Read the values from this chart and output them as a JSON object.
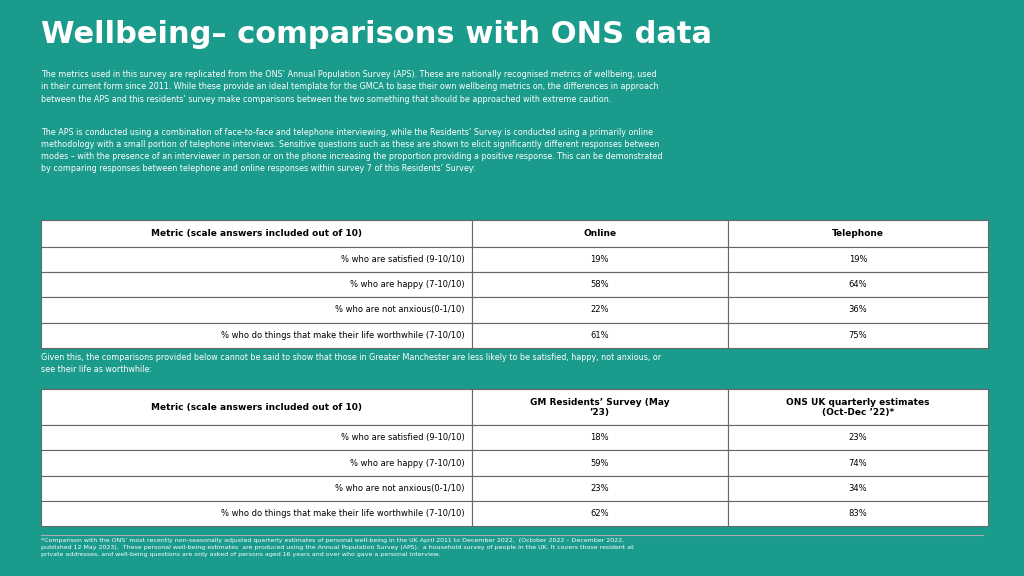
{
  "title": "Wellbeing– comparisons with ONS data",
  "bg_color": "#1a9b8c",
  "text_color": "#ffffff",
  "table_bg": "#ffffff",
  "table_text": "#000000",
  "para1": "The metrics used in this survey are replicated from the ONS’ Annual Population Survey (APS). These are nationally recognised metrics of wellbeing, used\nin their current form since 2011. While these provide an ideal template for the GMCA to base their own wellbeing metrics on, the differences in approach\nbetween the APS and this residents’ survey make comparisons between the two something that should be approached with extreme caution.",
  "para2": "The APS is conducted using a combination of face-to-face and telephone interviewing, while the Residents’ Survey is conducted using a primarily online\nmethodology with a small portion of telephone interviews. Sensitive questions such as these are shown to elicit significantly different responses between\nmodes – with the presence of an interviewer in person or on the phone increasing the proportion providing a positive response. This can be demonstrated\nby comparing responses between telephone and online responses within survey 7 of this Residents’ Survey:",
  "table1_headers": [
    "Metric (scale answers included out of 10)",
    "Online",
    "Telephone"
  ],
  "table1_rows": [
    [
      "% who are satisfied (9-10/10)",
      "19%",
      "19%"
    ],
    [
      "% who are happy (7-10/10)",
      "58%",
      "64%"
    ],
    [
      "% who are not anxious(0-1/10)",
      "22%",
      "36%"
    ],
    [
      "% who do things that make their life worthwhile (7-10/10)",
      "61%",
      "75%"
    ]
  ],
  "para3": "Given this, the comparisons provided below cannot be said to show that those in Greater Manchester are less likely to be satisfied, happy, not anxious, or\nsee their life as worthwhile:",
  "table2_headers": [
    "Metric (scale answers included out of 10)",
    "GM Residents’ Survey (May\n’23)",
    "ONS UK quarterly estimates\n(Oct-Dec ’22)*"
  ],
  "table2_rows": [
    [
      "% who are satisfied (9-10/10)",
      "18%",
      "23%"
    ],
    [
      "% who are happy (7-10/10)",
      "59%",
      "74%"
    ],
    [
      "% who are not anxious(0-1/10)",
      "23%",
      "34%"
    ],
    [
      "% who do things that make their life worthwhile (7-10/10)",
      "62%",
      "83%"
    ]
  ],
  "footnote": "*Comparison with the ONS’ most recently non-seasonally adjusted quarterly estimates of personal well-being in the UK April 2011 to December 2022,  (October 2022 – December 2022,\npublished 12 May 2023).  These personal well-being estimates  are produced using the Annual Population Survey (APS),  a household survey of people in the UK. It covers those resident at\nprivate addresses, and well-being questions are only asked of persons aged 16 years and over who gave a personal interview."
}
